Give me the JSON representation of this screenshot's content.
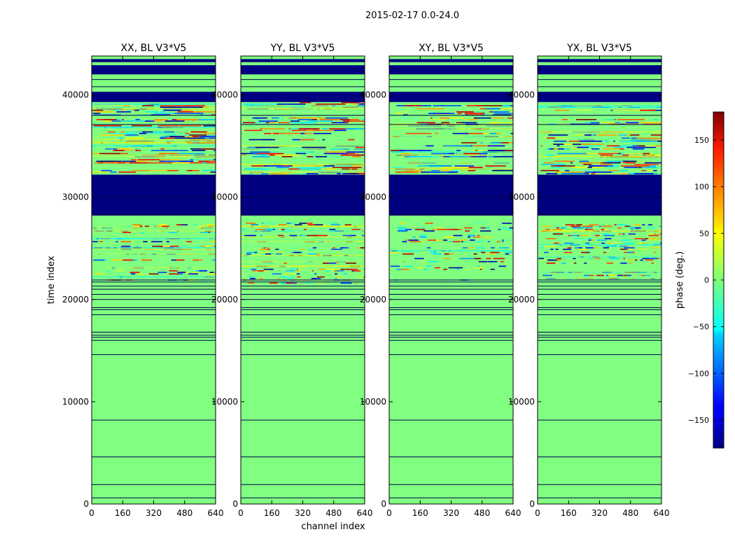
{
  "figure": {
    "suptitle": "2015-02-17 0.0-24.0",
    "ylabel": "time index",
    "xlabel": "channel index",
    "colorbar_label": "phase (deg.)"
  },
  "chart_data": {
    "type": "heatmap",
    "xlim": [
      0,
      640
    ],
    "ylim": [
      0,
      43800
    ],
    "x_ticks": [
      0,
      160,
      320,
      480,
      640
    ],
    "y_ticks": [
      0,
      10000,
      20000,
      30000,
      40000
    ],
    "panels": [
      {
        "title": "XX, BL V3*V5",
        "sharey_labels": false
      },
      {
        "title": "YY, BL V3*V5",
        "sharey_labels": true
      },
      {
        "title": "XY, BL V3*V5",
        "sharey_labels": true
      },
      {
        "title": "YX, BL V3*V5",
        "sharey_labels": true
      }
    ],
    "colorbar": {
      "colormap": "jet",
      "range": [
        -180,
        180
      ],
      "ticks": [
        -150,
        -100,
        -50,
        0,
        50,
        100,
        150
      ]
    },
    "structure": {
      "flag_bands_deg_value": -180,
      "flag_bands": [
        [
          28200,
          32200
        ],
        [
          39300,
          40300
        ],
        [
          42000,
          42900
        ],
        [
          43200,
          43500
        ]
      ],
      "noisy_region": [
        21500,
        27500
      ],
      "upper_noisy_region": [
        32200,
        39300
      ],
      "horizontal_lines": [
        600,
        1900,
        4600,
        8200,
        14600,
        16000,
        16300,
        16500,
        16800,
        18500,
        19000,
        19200,
        20000,
        20500,
        21000,
        21300,
        21700,
        21900,
        28300,
        30000,
        37100,
        38000,
        40800,
        41500
      ]
    }
  }
}
